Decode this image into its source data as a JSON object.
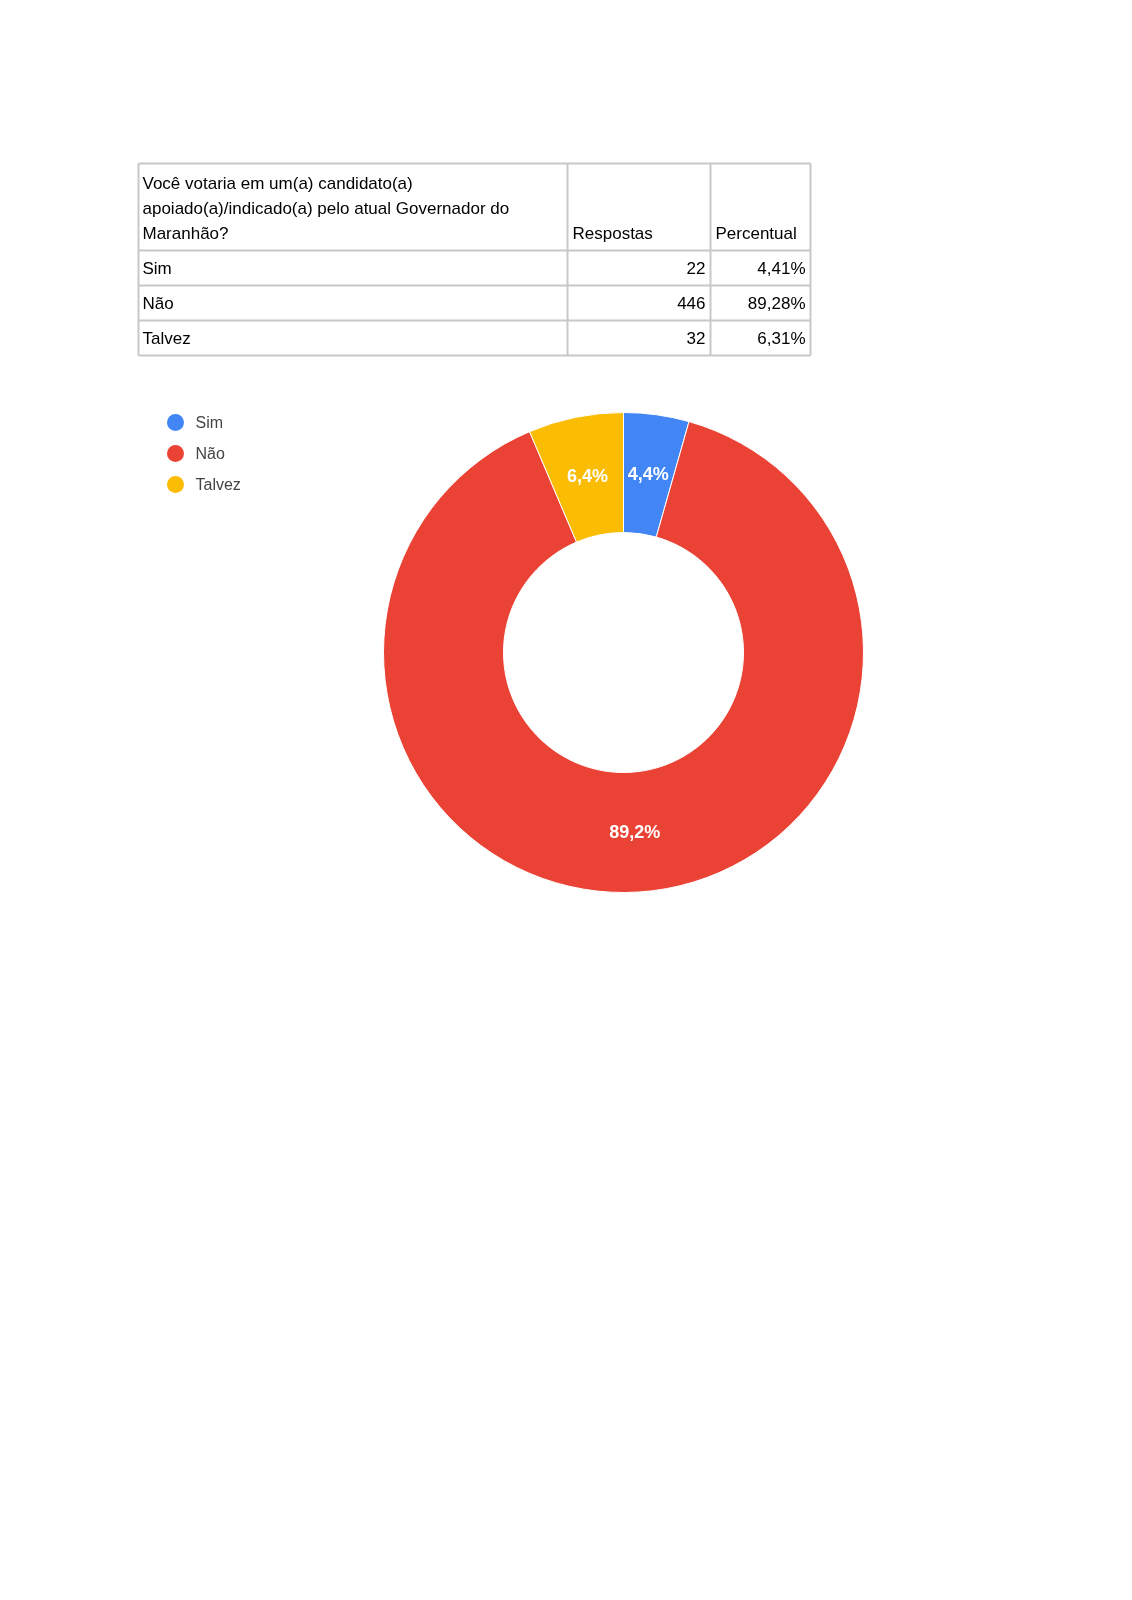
{
  "chart_data": {
    "type": "donut",
    "title": "Você votaria em um(a) candidato(a) apoiado(a)/indicado(a) pelo atual Governador do Maranhão?",
    "categories": [
      "Sim",
      "Não",
      "Talvez"
    ],
    "values": [
      4.4,
      89.2,
      6.4
    ],
    "colors": [
      "#4285f4",
      "#ea4335",
      "#fbbc04"
    ],
    "value_labels": [
      "4,4%",
      "89,2%",
      "6,4%"
    ],
    "annotations": [
      "Respostas",
      "Percentual",
      "22",
      "4,41%",
      "446",
      "89,28%",
      "32",
      "6,31%"
    ],
    "legend": "top left"
  }
}
